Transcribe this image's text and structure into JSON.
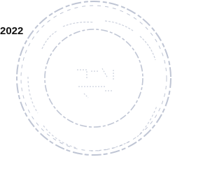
{
  "document": {
    "year": "2022"
  }
}
